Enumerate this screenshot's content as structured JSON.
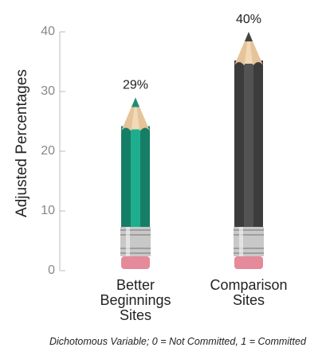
{
  "chart_data": {
    "type": "pencil-bar",
    "y_label": "Adjusted Percentages",
    "categories": [
      "Better Beginnings Sites",
      "Comparison Sites"
    ],
    "values": [
      29,
      40
    ],
    "value_labels": [
      "29%",
      "40%"
    ],
    "colors": [
      "#1c9e80",
      "#4b4b4b"
    ],
    "ylim": [
      0,
      40
    ],
    "yticks": [
      0,
      10,
      20,
      30,
      40
    ],
    "footnote": "Dichotomous Variable; 0 = Not Committed, 1 = Committed"
  }
}
